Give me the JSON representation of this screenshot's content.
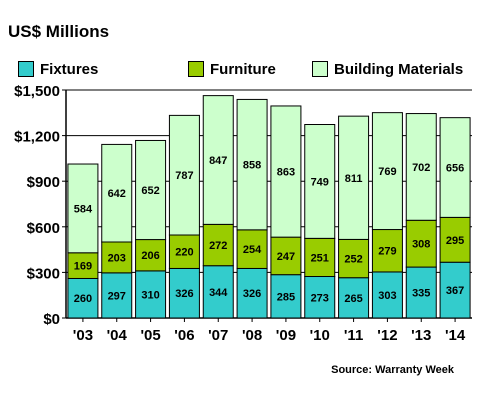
{
  "chart_data": {
    "type": "bar",
    "stacked": true,
    "title": "US$ Millions",
    "source": "Source: Warranty Week",
    "categories": [
      "'03",
      "'04",
      "'05",
      "'06",
      "'07",
      "'08",
      "'09",
      "'10",
      "'11",
      "'12",
      "'13",
      "'14"
    ],
    "series": [
      {
        "name": "Fixtures",
        "color": "#33cccc",
        "values": [
          260,
          297,
          310,
          326,
          344,
          326,
          285,
          273,
          265,
          303,
          335,
          367
        ]
      },
      {
        "name": "Furniture",
        "color": "#99cc00",
        "values": [
          169,
          203,
          206,
          220,
          272,
          254,
          247,
          251,
          252,
          279,
          308,
          295
        ]
      },
      {
        "name": "Building Materials",
        "color": "#ccffcc",
        "values": [
          584,
          642,
          652,
          787,
          847,
          858,
          863,
          749,
          811,
          769,
          702,
          656
        ]
      }
    ],
    "yticks": [
      "$0",
      "$300",
      "$600",
      "$900",
      "$1,200",
      "$1,500"
    ],
    "ylim": [
      0,
      1500
    ],
    "grid": true,
    "legend_position": "top"
  }
}
